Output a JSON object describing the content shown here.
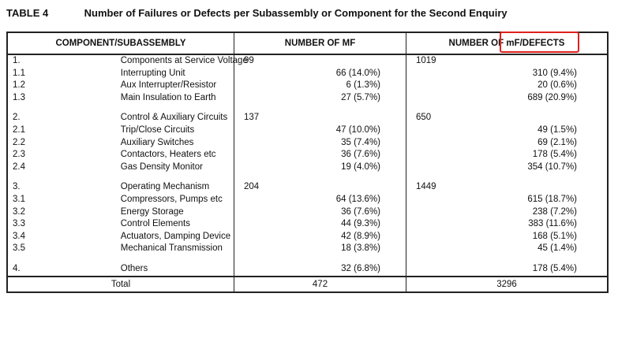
{
  "title": {
    "label": "TABLE 4",
    "text": "Number of Failures or Defects per Subassembly or Component for the Second Enquiry"
  },
  "headers": {
    "component": "COMPONENT/SUBASSEMBLY",
    "mf": "NUMBER OF MF",
    "defects": "NUMBER OF mF/DEFECTS"
  },
  "rows": [
    {
      "kind": "cat",
      "id": "1.",
      "name": "Components at Service Voltage",
      "mf": "99",
      "def": "1019"
    },
    {
      "kind": "sub",
      "id": "1.1",
      "name": "Interrupting Unit",
      "mf": "66 (14.0%)",
      "def": "310  (9.4%)"
    },
    {
      "kind": "sub",
      "id": "1.2",
      "name": "Aux Interrupter/Resistor",
      "mf": "6  (1.3%)",
      "def": "20  (0.6%)"
    },
    {
      "kind": "sub",
      "id": "1.3",
      "name": "Main Insulation to Earth",
      "mf": "27  (5.7%)",
      "def": "689  (20.9%)"
    },
    {
      "kind": "gap"
    },
    {
      "kind": "cat",
      "id": "2.",
      "name": "Control & Auxiliary Circuits",
      "mf": "137",
      "def": "650"
    },
    {
      "kind": "sub",
      "id": "2.1",
      "name": "Trip/Close Circuits",
      "mf": "47 (10.0%)",
      "def": "49  (1.5%)"
    },
    {
      "kind": "sub",
      "id": "2.2",
      "name": "Auxiliary Switches",
      "mf": "35  (7.4%)",
      "def": "69  (2.1%)"
    },
    {
      "kind": "sub",
      "id": "2.3",
      "name": "Contactors, Heaters etc",
      "mf": "36  (7.6%)",
      "def": "178  (5.4%)"
    },
    {
      "kind": "sub",
      "id": "2.4",
      "name": "Gas Density Monitor",
      "mf": "19  (4.0%)",
      "def": "354  (10.7%)"
    },
    {
      "kind": "gap"
    },
    {
      "kind": "cat",
      "id": "3.",
      "name": "Operating Mechanism",
      "mf": "204",
      "def": "1449"
    },
    {
      "kind": "sub",
      "id": "3.1",
      "name": "Compressors, Pumps etc",
      "mf": "64 (13.6%)",
      "def": "615  (18.7%)"
    },
    {
      "kind": "sub",
      "id": "3.2",
      "name": "Energy Storage",
      "mf": "36  (7.6%)",
      "def": "238  (7.2%)"
    },
    {
      "kind": "sub",
      "id": "3.3",
      "name": "Control Elements",
      "mf": "44  (9.3%)",
      "def": "383  (11.6%)"
    },
    {
      "kind": "sub",
      "id": "3.4",
      "name": "Actuators, Damping Device",
      "mf": "42  (8.9%)",
      "def": "168  (5.1%)"
    },
    {
      "kind": "sub",
      "id": "3.5",
      "name": "Mechanical Transmission",
      "mf": "18  (3.8%)",
      "def": "45  (1.4%)"
    },
    {
      "kind": "gap"
    },
    {
      "kind": "sub",
      "id": "4.",
      "name": "Others",
      "mf": "32  (6.8%)",
      "def": "178  (5.4%)"
    }
  ],
  "total": {
    "label": "Total",
    "mf": "472",
    "def": "3296"
  },
  "colors": {
    "highlight": "#e0201c",
    "border": "#222222"
  }
}
